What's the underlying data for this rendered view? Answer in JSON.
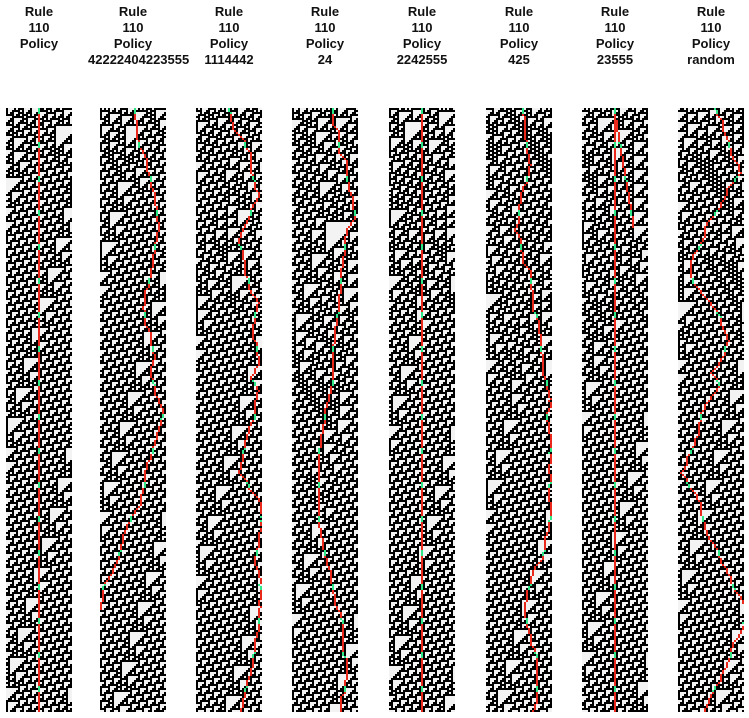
{
  "figure": {
    "panels": [
      {
        "rule_label": "Rule",
        "rule_number": "110",
        "policy_label": "Policy",
        "policy_value": ""
      },
      {
        "rule_label": "Rule",
        "rule_number": "110",
        "policy_label": "Policy",
        "policy_value": "42222404223555"
      },
      {
        "rule_label": "Rule",
        "rule_number": "110",
        "policy_label": "Policy",
        "policy_value": "1114442"
      },
      {
        "rule_label": "Rule",
        "rule_number": "110",
        "policy_label": "Policy",
        "policy_value": "24"
      },
      {
        "rule_label": "Rule",
        "rule_number": "110",
        "policy_label": "Policy",
        "policy_value": "2242555"
      },
      {
        "rule_label": "Rule",
        "rule_number": "110",
        "policy_label": "Policy",
        "policy_value": "425"
      },
      {
        "rule_label": "Rule",
        "rule_number": "110",
        "policy_label": "Policy",
        "policy_value": "23555"
      },
      {
        "rule_label": "Rule",
        "rule_number": "110",
        "policy_label": "Policy",
        "policy_value": "random"
      }
    ],
    "colors": {
      "live_cell": "#000000",
      "dead_cell": "#f3f3f3",
      "path_red": "#e8291c",
      "path_green": "#2ee887"
    }
  }
}
